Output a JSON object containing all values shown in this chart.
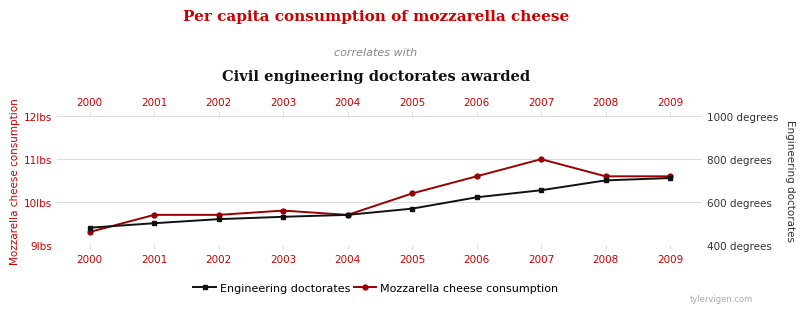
{
  "years": [
    2000,
    2001,
    2002,
    2003,
    2004,
    2005,
    2006,
    2007,
    2008,
    2009
  ],
  "mozzarella": [
    9.3,
    9.7,
    9.7,
    9.8,
    9.7,
    10.2,
    10.6,
    11.0,
    10.6,
    10.6
  ],
  "doctorates": [
    480,
    501,
    520,
    531,
    540,
    569,
    622,
    655,
    701,
    712
  ],
  "title_line1": "Per capita consumption of mozzarella cheese",
  "title_line2": "correlates with",
  "title_line3": "Civil engineering doctorates awarded",
  "ylabel_left": "Mozzarella cheese consumption",
  "ylabel_right": "Engineering doctorates",
  "legend_doc": "Engineering doctorates",
  "legend_moz": "Mozzarella cheese consumption",
  "color_mozzarella": "#990000",
  "color_doctorates": "#111111",
  "color_title1": "#cc0000",
  "color_title2": "#888888",
  "color_title3": "#111111",
  "color_axis_labels": "#cc0000",
  "color_tick_years": "#cc0000",
  "ylim_left": [
    9.0,
    12.0
  ],
  "ylim_right": [
    400,
    1000
  ],
  "yticks_left": [
    9,
    10,
    11,
    12
  ],
  "yticks_right": [
    400,
    600,
    800,
    1000
  ],
  "ytick_labels_left": [
    "9lbs",
    "10lbs",
    "11lbs",
    "12lbs"
  ],
  "ytick_labels_right": [
    "400 degrees",
    "600 degrees",
    "800 degrees",
    "1000 degrees"
  ],
  "watermark": "tylervigen.com",
  "bg_color": "#ffffff"
}
